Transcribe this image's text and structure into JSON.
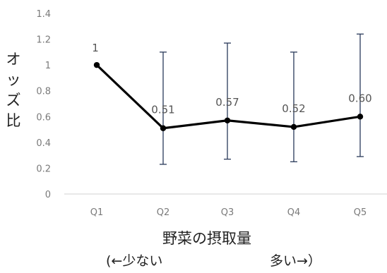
{
  "chart_data": {
    "type": "line",
    "categories": [
      "Q1",
      "Q2",
      "Q3",
      "Q4",
      "Q5"
    ],
    "values": [
      1,
      0.51,
      0.57,
      0.52,
      0.6
    ],
    "data_labels": [
      "1",
      "0.51",
      "0.57",
      "0.52",
      "0.60"
    ],
    "ci_lower": [
      null,
      0.23,
      0.27,
      0.25,
      0.29
    ],
    "ci_upper": [
      null,
      1.1,
      1.17,
      1.1,
      1.24
    ],
    "ylim": [
      0,
      1.4
    ],
    "yticks": [
      0,
      0.2,
      0.4,
      0.6,
      0.8,
      1,
      1.2,
      1.4
    ],
    "ytick_labels": [
      "0",
      "0.2",
      "0.4",
      "0.6",
      "0.8",
      "1",
      "1.2",
      "1.4"
    ],
    "ylabel_chars": [
      "オ",
      "ッ",
      "ズ",
      "比"
    ],
    "xlabel": "野菜の摂取量",
    "xlabel_sub_left": "(←少ない",
    "xlabel_sub_right": "多い→）",
    "grid": false,
    "colors": {
      "line": "#000000",
      "error_bar": "#2a3a5a",
      "axis": "#d9d9d9"
    }
  }
}
